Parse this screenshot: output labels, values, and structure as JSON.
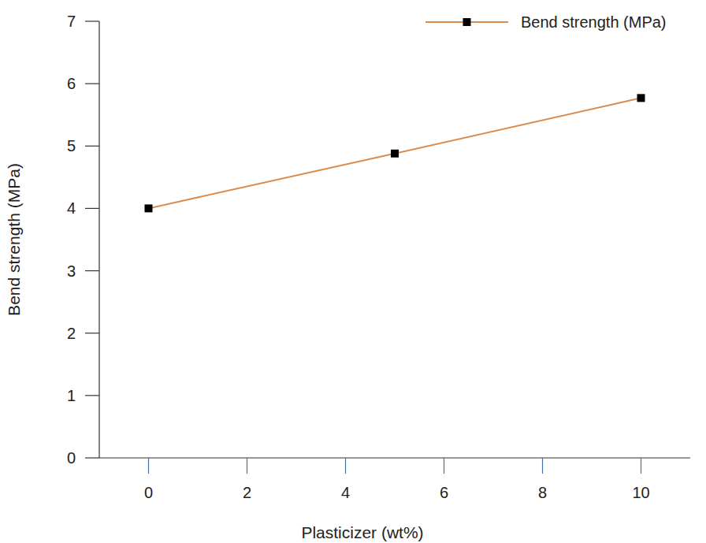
{
  "chart_data": {
    "type": "line",
    "x_label": "Plasticizer (wt%)",
    "y_label": "Bend strength (MPa)",
    "x": [
      0,
      5,
      10
    ],
    "series": [
      {
        "name": "Bend strength (MPa)",
        "color": "#d98c4e",
        "marker": "square",
        "line_style": "solid",
        "values": [
          4.0,
          4.88,
          5.77
        ]
      }
    ],
    "xlim": [
      -1,
      11
    ],
    "ylim": [
      0,
      7
    ],
    "xticks": [
      0,
      2,
      4,
      6,
      8,
      10
    ],
    "yticks": [
      0,
      1,
      2,
      3,
      4,
      5,
      6,
      7
    ],
    "grid": false,
    "legend": "top right"
  }
}
